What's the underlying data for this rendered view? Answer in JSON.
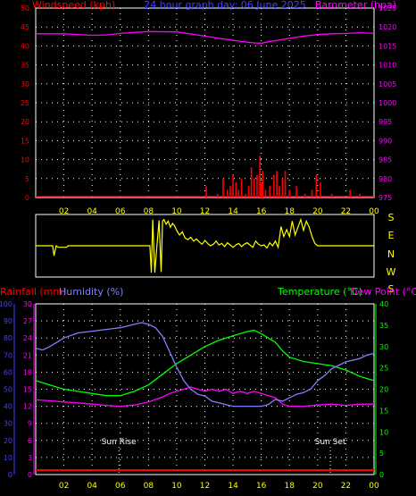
{
  "page": {
    "title": "24 hour graph day: 06 June 2025"
  },
  "colors": {
    "background": "#000000",
    "frame": "#ffffff",
    "grid": "#ffffff",
    "wind": "#ff0000",
    "barometer": "#ff00ff",
    "wind_dir": "#ffff00",
    "rain": "#ff0000",
    "humidity": "#8080ff",
    "temperature": "#00ff00",
    "dewpoint": "#ff00ff",
    "title": "#4040ff",
    "sun": "#ffffff",
    "axis_labels": "#ffff00",
    "hum_ticks": "#4040ff",
    "rain_ticks": "#ff00ff"
  },
  "chart_data": [
    {
      "type": "bar+line",
      "id": "wind_baro",
      "title": "24 hour graph day: 06 June 2025",
      "left_axis_label": "Windspeed (kph)",
      "right_axis_label": "Barometer (hpa)",
      "x_ticks": [
        "02",
        "04",
        "06",
        "08",
        "10",
        "12",
        "14",
        "16",
        "18",
        "20",
        "22",
        "00"
      ],
      "x_range_hours": [
        0,
        24
      ],
      "wind_range": [
        0,
        50
      ],
      "wind_ticks": [
        0,
        5,
        10,
        15,
        20,
        25,
        30,
        35,
        40,
        45,
        50
      ],
      "baro_range": [
        975,
        1025
      ],
      "baro_ticks": [
        975,
        980,
        985,
        990,
        995,
        1000,
        1005,
        1010,
        1015,
        1020,
        1025
      ],
      "grid": true,
      "series": [
        {
          "name": "Barometer (hpa)",
          "kind": "line",
          "x": [
            0,
            2,
            4,
            5,
            6,
            8,
            10,
            12,
            13,
            14,
            15,
            15.5,
            16,
            16.5,
            17,
            18,
            19,
            20,
            21,
            22,
            23,
            24
          ],
          "y": [
            1018.2,
            1018.2,
            1017.8,
            1017.9,
            1018.3,
            1018.8,
            1018.7,
            1017.6,
            1017.0,
            1016.5,
            1016.0,
            1015.8,
            1015.7,
            1016.1,
            1016.4,
            1017.0,
            1017.6,
            1018.0,
            1018.2,
            1018.3,
            1018.5,
            1018.3
          ]
        },
        {
          "name": "Windspeed (kph)",
          "kind": "bar",
          "x": [
            12.1,
            12.9,
            13.3,
            13.6,
            13.8,
            14.0,
            14.2,
            14.4,
            14.6,
            14.9,
            15.1,
            15.3,
            15.5,
            15.7,
            15.9,
            16.0,
            16.1,
            16.3,
            16.6,
            16.9,
            17.1,
            17.3,
            17.5,
            17.7,
            18.0,
            18.5,
            19.1,
            19.6,
            19.9,
            20.2,
            21.0,
            22.3,
            23.0
          ],
          "y": [
            3,
            1,
            5,
            2,
            3,
            6,
            4,
            2,
            5,
            1,
            3,
            8,
            5,
            6,
            11,
            4,
            7,
            2,
            3,
            6,
            7,
            3,
            5,
            7,
            2,
            3,
            1,
            2,
            6,
            4,
            1,
            2,
            1
          ]
        }
      ]
    },
    {
      "type": "line",
      "id": "wind_dir",
      "right_axis_label": "S E N W S",
      "direction_labels": [
        "S",
        "E",
        "N",
        "W",
        "S"
      ],
      "x_range_hours": [
        0,
        24
      ],
      "y_range_degrees": [
        0,
        360
      ],
      "series": [
        {
          "name": "Wind direction",
          "x": [
            0,
            1.2,
            1.3,
            1.45,
            1.6,
            2.2,
            2.3,
            3,
            5,
            7,
            8.1,
            8.2,
            8.3,
            8.45,
            8.6,
            8.75,
            8.9,
            9.0,
            9.1,
            9.25,
            9.4,
            9.55,
            9.7,
            9.85,
            10.0,
            10.2,
            10.4,
            10.6,
            10.8,
            11.0,
            11.2,
            11.4,
            11.6,
            11.8,
            12.0,
            12.2,
            12.4,
            12.6,
            12.8,
            13.0,
            13.2,
            13.4,
            13.6,
            13.8,
            14.0,
            14.2,
            14.4,
            14.6,
            14.8,
            15.0,
            15.2,
            15.4,
            15.6,
            15.8,
            16.0,
            16.2,
            16.4,
            16.6,
            16.8,
            17.0,
            17.2,
            17.4,
            17.6,
            17.8,
            18.0,
            18.2,
            18.4,
            18.6,
            18.8,
            19.0,
            19.2,
            19.4,
            19.6,
            19.8,
            20.0,
            20.5,
            21,
            22,
            23,
            24
          ],
          "y": [
            180,
            180,
            245,
            180,
            190,
            190,
            180,
            180,
            180,
            180,
            180,
            355,
            10,
            355,
            180,
            15,
            350,
            20,
            10,
            40,
            20,
            60,
            35,
            50,
            80,
            110,
            90,
            130,
            140,
            125,
            150,
            135,
            155,
            170,
            145,
            165,
            180,
            170,
            150,
            175,
            165,
            185,
            160,
            175,
            190,
            175,
            165,
            185,
            170,
            160,
            175,
            190,
            150,
            170,
            180,
            175,
            195,
            160,
            180,
            150,
            190,
            55,
            120,
            75,
            120,
            20,
            110,
            60,
            10,
            80,
            20,
            60,
            120,
            165,
            180,
            180,
            180,
            180,
            180,
            180
          ]
        }
      ]
    },
    {
      "type": "line",
      "id": "temp_hum",
      "left_axis_labels": [
        "Rainfall (mm)",
        "Humidity (%)"
      ],
      "right_axis_labels": [
        "Temperature (°C)",
        "Dew Point (°C)"
      ],
      "x_ticks": [
        "02",
        "04",
        "06",
        "08",
        "10",
        "12",
        "14",
        "16",
        "18",
        "20",
        "22",
        "00"
      ],
      "x_range_hours": [
        0,
        24
      ],
      "humidity_range": [
        0,
        100
      ],
      "humidity_ticks": [
        0,
        10,
        20,
        30,
        40,
        50,
        60,
        70,
        80,
        90,
        100
      ],
      "rain_range": [
        0,
        30
      ],
      "rain_ticks": [
        0,
        3,
        6,
        9,
        12,
        15,
        18,
        21,
        24,
        27,
        30
      ],
      "temp_range": [
        0,
        40
      ],
      "temp_ticks": [
        0,
        5,
        10,
        15,
        20,
        25,
        30,
        35,
        40
      ],
      "grid": true,
      "annotations": [
        "Sun Rise",
        "Sun Set"
      ],
      "sun_rise_hour": 5.9,
      "sun_set_hour": 20.9,
      "series": [
        {
          "name": "Humidity (%)",
          "x": [
            0,
            0.5,
            1,
            2,
            3,
            4,
            5,
            6,
            7,
            7.5,
            8,
            8.5,
            9,
            9.5,
            10,
            10.5,
            11,
            11.5,
            12,
            12.5,
            13,
            13.5,
            14,
            14.5,
            15,
            15.5,
            16,
            16.5,
            17,
            17.5,
            18,
            18.5,
            19,
            19.5,
            20,
            20.5,
            21,
            22,
            23,
            23.5,
            24
          ],
          "y": [
            74,
            73,
            75,
            80,
            83,
            84,
            85,
            86,
            88,
            89,
            88,
            86,
            81,
            72,
            63,
            55,
            50,
            47,
            46,
            43,
            42,
            41,
            40,
            40,
            40,
            40,
            40,
            41,
            44,
            43,
            45,
            47,
            48,
            50,
            55,
            58,
            62,
            66,
            68,
            70,
            71
          ]
        },
        {
          "name": "Temperature (°C)",
          "x": [
            0,
            1,
            2,
            3,
            4,
            5,
            5.5,
            6,
            7,
            8,
            9,
            10,
            11,
            12,
            13,
            14,
            15,
            15.5,
            16,
            16.5,
            17,
            17.5,
            18,
            19,
            20,
            21,
            22,
            23,
            23.5,
            24
          ],
          "y": [
            22,
            21,
            20,
            19.5,
            19,
            18.5,
            18.5,
            18.5,
            19.5,
            21,
            23.5,
            26,
            28,
            30,
            31.5,
            32.5,
            33.5,
            33.8,
            33,
            32,
            31,
            29,
            27.5,
            26.5,
            26,
            25.5,
            24.5,
            23,
            22.5,
            22
          ]
        },
        {
          "name": "Dew Point (°C)",
          "x": [
            0,
            1,
            2,
            3,
            4,
            5,
            6,
            7,
            8,
            9,
            9.5,
            10,
            10.5,
            11,
            11.5,
            12,
            12.5,
            13,
            13.5,
            14,
            14.5,
            15,
            15.5,
            16,
            16.5,
            17,
            17.5,
            18,
            19,
            20,
            21,
            22,
            23,
            24
          ],
          "y": [
            17.5,
            17.3,
            17,
            16.8,
            16.5,
            16.2,
            16.0,
            16.3,
            17.0,
            18.2,
            19.0,
            19.5,
            20.0,
            20.5,
            20.0,
            19.5,
            20.0,
            19.5,
            20.0,
            19.0,
            19.5,
            19.0,
            19.5,
            19.0,
            18.5,
            18.0,
            16.5,
            16.0,
            16.0,
            16.3,
            16.5,
            16.2,
            16.5,
            16.5
          ]
        },
        {
          "name": "Rainfall (mm)",
          "x": [
            0,
            24
          ],
          "y": [
            0,
            0
          ]
        }
      ]
    }
  ]
}
